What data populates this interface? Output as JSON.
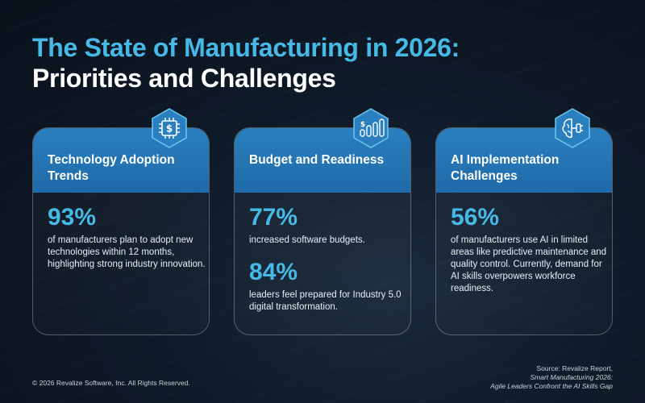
{
  "title": {
    "line1": "The State of Manufacturing in 2026:",
    "line2": "Priorities and Challenges"
  },
  "cards": [
    {
      "icon": "chip-dollar-icon",
      "title": "Technology Adoption Trends",
      "stats": [
        {
          "value": "93%",
          "text": "of manufacturers plan to adopt new technologies within 12 months, highlighting strong industry innovation."
        }
      ]
    },
    {
      "icon": "budget-bars-icon",
      "title": "Budget and Readiness",
      "stats": [
        {
          "value": "77%",
          "text": "increased software budgets."
        },
        {
          "value": "84%",
          "text": "leaders feel prepared for Industry 5.0 digital transformation."
        }
      ]
    },
    {
      "icon": "ai-brain-icon",
      "title": "AI Implementation Challenges",
      "stats": [
        {
          "value": "56%",
          "text": "of manufacturers use AI in limited areas like predictive maintenance and quality control. Currently, demand for AI skills overpowers workforce readiness."
        }
      ]
    }
  ],
  "footer": {
    "copyright": "© 2026 Revalize Software, Inc. All Rights Reserved.",
    "source_line1": "Source: Revalize Report,",
    "source_line2": "Smart Manufacturing 2026:",
    "source_line3": "Agile Leaders Confront the AI Skills Gap"
  },
  "colors": {
    "accent": "#46b9e6",
    "card_header": "#2a7fbf",
    "background": "#0f1a28"
  }
}
